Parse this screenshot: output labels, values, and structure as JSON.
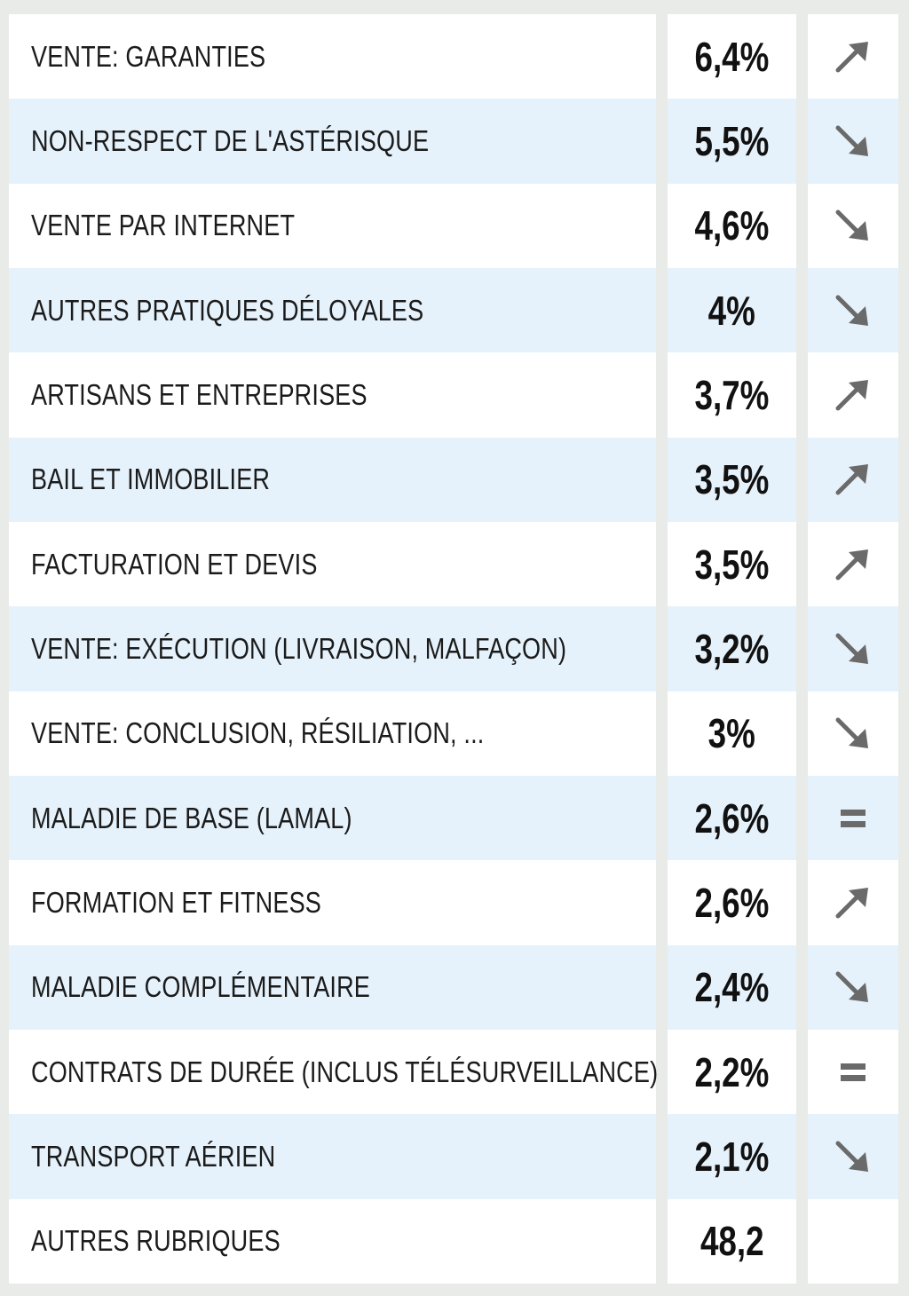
{
  "chart_data": {
    "type": "table",
    "columns": [
      "category",
      "share",
      "trend"
    ],
    "rows": [
      {
        "label": "VENTE: GARANTIES",
        "value": "6,4%",
        "trend": "up"
      },
      {
        "label": "NON-RESPECT DE L'ASTÉRISQUE",
        "value": "5,5%",
        "trend": "down"
      },
      {
        "label": "VENTE PAR INTERNET",
        "value": "4,6%",
        "trend": "down"
      },
      {
        "label": "AUTRES PRATIQUES DÉLOYALES",
        "value": "4%",
        "trend": "down"
      },
      {
        "label": "ARTISANS ET ENTREPRISES",
        "value": "3,7%",
        "trend": "up"
      },
      {
        "label": "BAIL ET IMMOBILIER",
        "value": "3,5%",
        "trend": "up"
      },
      {
        "label": "FACTURATION ET DEVIS",
        "value": "3,5%",
        "trend": "up"
      },
      {
        "label": "VENTE: EXÉCUTION (LIVRAISON, MALFAÇON)",
        "value": "3,2%",
        "trend": "down"
      },
      {
        "label": "VENTE: CONCLUSION, RÉSILIATION, ...",
        "value": "3%",
        "trend": "down"
      },
      {
        "label": "MALADIE DE BASE (LAMAL)",
        "value": "2,6%",
        "trend": "equal"
      },
      {
        "label": "FORMATION ET FITNESS",
        "value": "2,6%",
        "trend": "up"
      },
      {
        "label": "MALADIE COMPLÉMENTAIRE",
        "value": "2,4%",
        "trend": "down"
      },
      {
        "label": "CONTRATS DE DURÉE (INCLUS TÉLÉSURVEILLANCE)",
        "value": "2,2%",
        "trend": "equal"
      },
      {
        "label": "TRANSPORT AÉRIEN",
        "value": "2,1%",
        "trend": "down"
      },
      {
        "label": "AUTRES RUBRIQUES",
        "value": "48,2",
        "trend": "none"
      }
    ]
  },
  "icons": {
    "up": "arrow-up-right-icon",
    "down": "arrow-down-right-icon",
    "equal": "equals-icon"
  },
  "colors": {
    "background": "#e9ebe8",
    "row_white": "#ffffff",
    "row_blue": "#e6f2fb",
    "text": "#1b1b1b",
    "icon": "#6a6a6a"
  }
}
